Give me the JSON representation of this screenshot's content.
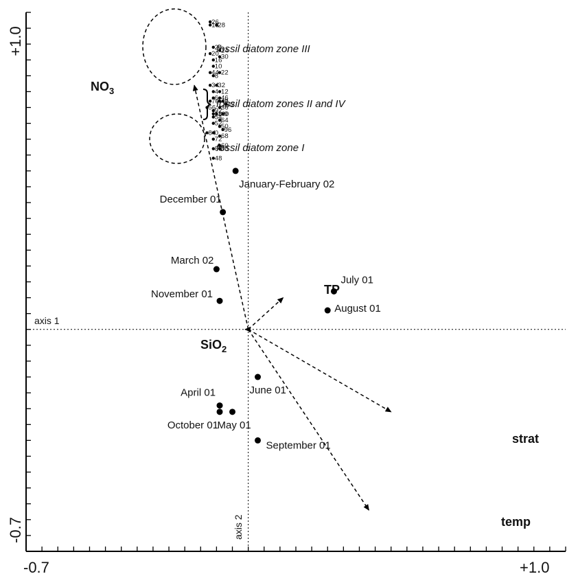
{
  "chart_data": {
    "type": "scatter",
    "xlim": [
      -0.7,
      1.0
    ],
    "ylim": [
      -0.7,
      1.0
    ],
    "x_tick_labels": [
      "-0.7",
      "+1.0"
    ],
    "y_tick_labels": [
      "-0.7",
      "+1.0"
    ],
    "axis1_label": "axis 1",
    "axis2_label": "axis 2",
    "samples": [
      {
        "label": "January-February 02",
        "x": -0.04,
        "y": 0.5
      },
      {
        "label": "December 01",
        "x": -0.08,
        "y": 0.37
      },
      {
        "label": "March 02",
        "x": -0.1,
        "y": 0.19
      },
      {
        "label": "November 01",
        "x": -0.09,
        "y": 0.09
      },
      {
        "label": "July 01",
        "x": 0.27,
        "y": 0.12
      },
      {
        "label": "August 01",
        "x": 0.25,
        "y": 0.06
      },
      {
        "label": "June 01",
        "x": 0.03,
        "y": -0.15
      },
      {
        "label": "April 01",
        "x": -0.09,
        "y": -0.24
      },
      {
        "label": "October 01",
        "x": -0.09,
        "y": -0.26
      },
      {
        "label": "May 01",
        "x": -0.05,
        "y": -0.26
      },
      {
        "label": "September 01",
        "x": 0.03,
        "y": -0.35
      }
    ],
    "vectors": [
      {
        "label": "NO3",
        "x": -0.17,
        "y": 0.77
      },
      {
        "label": "TP",
        "x": 0.11,
        "y": 0.1
      },
      {
        "label": "SiO2",
        "x": -0.01,
        "y": 0.0
      },
      {
        "label": "strat",
        "x": 0.45,
        "y": -0.26
      },
      {
        "label": "temp",
        "x": 0.38,
        "y": -0.57
      }
    ],
    "zones": [
      {
        "label": "fossil diatom zone III"
      },
      {
        "label": "fossil diatom zones II and IV"
      },
      {
        "label": "fossil diatom zone I"
      }
    ],
    "fossil_points": [
      {
        "label": "26",
        "x": -0.12,
        "y": 0.97
      },
      {
        "label": "18",
        "x": -0.12,
        "y": 0.96
      },
      {
        "label": "28",
        "x": -0.1,
        "y": 0.96
      },
      {
        "label": "24",
        "x": -0.11,
        "y": 0.89
      },
      {
        "label": "14",
        "x": -0.09,
        "y": 0.88
      },
      {
        "label": "20",
        "x": -0.12,
        "y": 0.87
      },
      {
        "label": "30",
        "x": -0.09,
        "y": 0.86
      },
      {
        "label": "16",
        "x": -0.11,
        "y": 0.85
      },
      {
        "label": "10",
        "x": -0.11,
        "y": 0.83
      },
      {
        "label": "44",
        "x": -0.12,
        "y": 0.81
      },
      {
        "label": "22",
        "x": -0.09,
        "y": 0.81
      },
      {
        "label": "8",
        "x": -0.11,
        "y": 0.8
      },
      {
        "label": "34",
        "x": -0.12,
        "y": 0.77
      },
      {
        "label": "32",
        "x": -0.1,
        "y": 0.77
      },
      {
        "label": "4",
        "x": -0.11,
        "y": 0.75
      },
      {
        "label": "12",
        "x": -0.09,
        "y": 0.75
      },
      {
        "label": "6",
        "x": -0.11,
        "y": 0.73
      },
      {
        "label": "46",
        "x": -0.09,
        "y": 0.73
      },
      {
        "label": "76",
        "x": -0.12,
        "y": 0.72
      },
      {
        "label": "40",
        "x": -0.09,
        "y": 0.72
      },
      {
        "label": "2",
        "x": -0.08,
        "y": 0.72
      },
      {
        "label": "56",
        "x": -0.13,
        "y": 0.7
      },
      {
        "label": "36",
        "x": -0.09,
        "y": 0.7
      },
      {
        "label": "42",
        "x": -0.07,
        "y": 0.71
      },
      {
        "label": "92",
        "x": -0.11,
        "y": 0.69
      },
      {
        "label": "58",
        "x": -0.11,
        "y": 0.68
      },
      {
        "label": "100",
        "x": -0.1,
        "y": 0.68
      },
      {
        "label": "9",
        "x": -0.08,
        "y": 0.68
      },
      {
        "label": "54",
        "x": -0.11,
        "y": 0.67
      },
      {
        "label": "64",
        "x": -0.09,
        "y": 0.66
      },
      {
        "label": "52",
        "x": -0.11,
        "y": 0.65
      },
      {
        "label": "50",
        "x": -0.09,
        "y": 0.64
      },
      {
        "label": "96",
        "x": -0.08,
        "y": 0.63
      },
      {
        "label": "84",
        "x": -0.13,
        "y": 0.62
      },
      {
        "label": "0",
        "x": -0.11,
        "y": 0.62
      },
      {
        "label": "68",
        "x": -0.09,
        "y": 0.61
      },
      {
        "label": "72",
        "x": -0.11,
        "y": 0.6
      },
      {
        "label": "60",
        "x": -0.09,
        "y": 0.58
      },
      {
        "label": "88",
        "x": -0.11,
        "y": 0.57
      },
      {
        "label": "80",
        "x": -0.09,
        "y": 0.57
      },
      {
        "label": "48",
        "x": -0.11,
        "y": 0.54
      }
    ]
  }
}
